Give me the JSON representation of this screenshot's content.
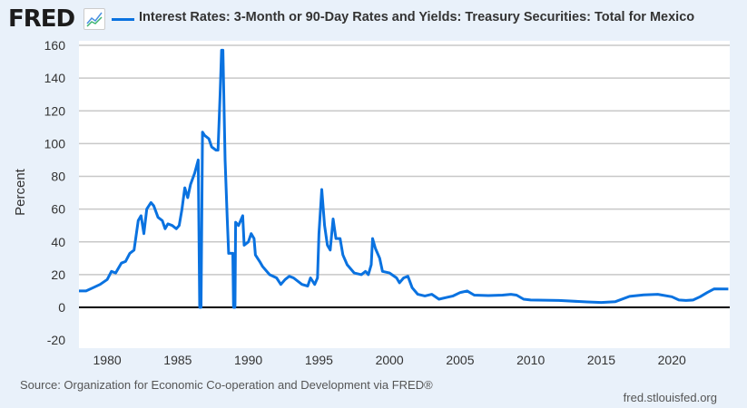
{
  "logo": "FRED",
  "chart_data": {
    "type": "line",
    "title": "Interest Rates: 3-Month or 90-Day Rates and Yields: Treasury Securities: Total for Mexico",
    "xlabel": "",
    "ylabel": "Percent",
    "ylim": [
      -20,
      160
    ],
    "xlim": [
      1978,
      2024.1
    ],
    "yticks": [
      -20,
      0,
      20,
      40,
      60,
      80,
      100,
      120,
      140,
      160
    ],
    "xticks": [
      1980,
      1985,
      1990,
      1995,
      2000,
      2005,
      2010,
      2015,
      2020
    ],
    "grid": true,
    "legend": "top",
    "color": "#0a72e0",
    "series": [
      {
        "name": "Interest Rates: 3-Month or 90-Day Rates and Yields: Treasury Securities: Total for Mexico",
        "x": [
          1978,
          1978.5,
          1979,
          1979.5,
          1980,
          1980.3,
          1980.6,
          1981,
          1981.3,
          1981.6,
          1981.9,
          1982.2,
          1982.4,
          1982.6,
          1982.8,
          1983.1,
          1983.3,
          1983.6,
          1983.9,
          1984.1,
          1984.3,
          1984.6,
          1984.9,
          1985.1,
          1985.3,
          1985.5,
          1985.7,
          1985.9,
          1986.2,
          1986.45,
          1986.55,
          1986.65,
          1986.75,
          1986.9,
          1987.2,
          1987.4,
          1987.7,
          1987.85,
          1988.0,
          1988.1,
          1988.2,
          1988.35,
          1988.5,
          1988.6,
          1988.9,
          1988.95,
          1989.05,
          1989.1,
          1989.3,
          1989.5,
          1989.6,
          1989.7,
          1990.0,
          1990.2,
          1990.4,
          1990.5,
          1990.8,
          1991,
          1991.5,
          1992,
          1992.3,
          1992.6,
          1992.9,
          1993.2,
          1993.8,
          1994.2,
          1994.4,
          1994.7,
          1994.9,
          1995.0,
          1995.2,
          1995.4,
          1995.6,
          1995.8,
          1996,
          1996.2,
          1996.5,
          1996.7,
          1997,
          1997.5,
          1998,
          1998.3,
          1998.5,
          1998.7,
          1998.8,
          1999,
          1999.3,
          1999.5,
          2000,
          2000.5,
          2000.7,
          2001,
          2001.3,
          2001.6,
          2002,
          2002.5,
          2003,
          2003.5,
          2004,
          2004.5,
          2005,
          2005.5,
          2006,
          2007,
          2008,
          2008.6,
          2009,
          2009.5,
          2010,
          2012,
          2014,
          2015,
          2016,
          2017,
          2018,
          2019,
          2020,
          2020.5,
          2021,
          2021.5,
          2022,
          2022.5,
          2023,
          2024
        ],
        "y": [
          10,
          10,
          12,
          14,
          17,
          22,
          21,
          27,
          28,
          33,
          35,
          53,
          56,
          45,
          60,
          64,
          62,
          55,
          53,
          48,
          51,
          50,
          48,
          50,
          60,
          73,
          67,
          75,
          82,
          90,
          0,
          0,
          107,
          105,
          103,
          98,
          96,
          96,
          130,
          157,
          157,
          90,
          55,
          33,
          33,
          0,
          0,
          52,
          50,
          54,
          56,
          38,
          40,
          45,
          42,
          32,
          28,
          25,
          20,
          18,
          14,
          17,
          19,
          18,
          14,
          13,
          18,
          14,
          18,
          45,
          72,
          50,
          38,
          35,
          54,
          42,
          42,
          32,
          26,
          21,
          20,
          22,
          20,
          26,
          42,
          36,
          30,
          22,
          21,
          18,
          15,
          18,
          19,
          12,
          8,
          7,
          8,
          5,
          6,
          7,
          9,
          10,
          7.5,
          7.2,
          7.5,
          8,
          7.5,
          5,
          4.5,
          4.2,
          3.3,
          3,
          3.5,
          6.7,
          7.6,
          8,
          6.5,
          4.5,
          4.2,
          4.5,
          6.5,
          9,
          11.3,
          11.2
        ]
      }
    ]
  },
  "source": "Source: Organization for Economic Co-operation and Development via FRED®",
  "url": "fred.stlouisfed.org"
}
